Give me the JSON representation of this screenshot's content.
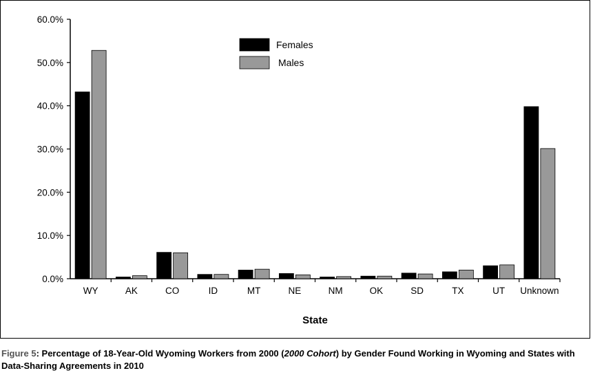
{
  "chart_data": {
    "type": "bar",
    "categories": [
      "WY",
      "AK",
      "CO",
      "ID",
      "MT",
      "NE",
      "NM",
      "OK",
      "SD",
      "TX",
      "UT",
      "Unknown"
    ],
    "series": [
      {
        "name": "Females",
        "color": "#000000",
        "values": [
          43.2,
          0.4,
          6.1,
          1.0,
          2.0,
          1.2,
          0.4,
          0.6,
          1.3,
          1.6,
          3.0,
          39.8
        ]
      },
      {
        "name": "Males",
        "color": "#999999",
        "values": [
          52.8,
          0.7,
          6.0,
          1.0,
          2.2,
          0.9,
          0.5,
          0.6,
          1.1,
          2.0,
          3.2,
          30.1
        ]
      }
    ],
    "ylim": [
      0,
      60
    ],
    "yticks": [
      0,
      10,
      20,
      30,
      40,
      50,
      60
    ],
    "ytick_labels": [
      "0.0%",
      "10.0%",
      "20.0%",
      "30.0%",
      "40.0%",
      "50.0%",
      "60.0%"
    ],
    "xlabel": "State",
    "ylabel": "",
    "legend_position": "top-center",
    "grid": false
  },
  "caption": {
    "label": "Figure 5",
    "text_before_italic": ": Percentage of 18-Year-Old Wyoming Workers from 2000 (",
    "italic": "2000 Cohort",
    "text_after_italic": ") by Gender  Found Working in Wyoming and States with Data-Sharing Agreements in 2010"
  }
}
